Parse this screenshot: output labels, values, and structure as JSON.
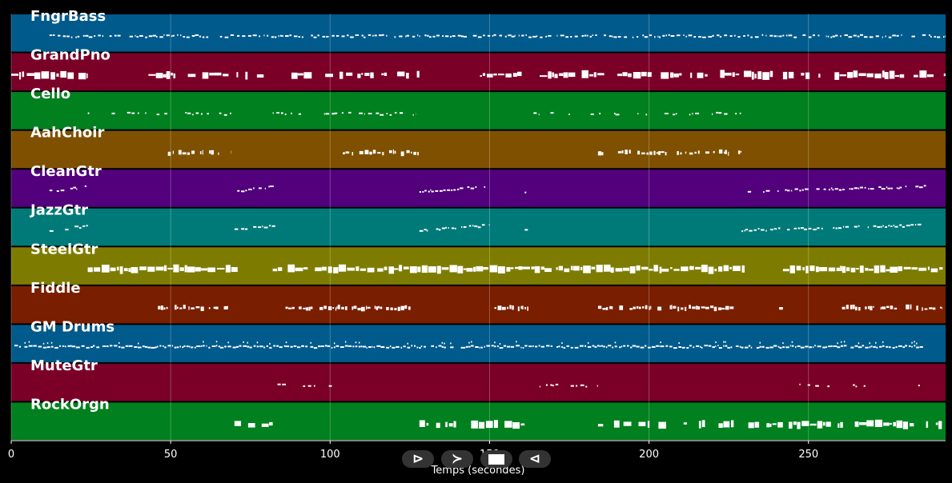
{
  "chart_data": {
    "type": "piano-roll",
    "xlabel": "Temps (secondes)",
    "xlim": [
      0,
      293
    ],
    "xticks": [
      0,
      50,
      100,
      150,
      200,
      250
    ],
    "grid": true,
    "tracks": [
      {
        "name": "FngrBass",
        "color": "#005a8c",
        "segments": [
          [
            12,
            293
          ]
        ],
        "density": 0.9,
        "style": "thin"
      },
      {
        "name": "GrandPno",
        "color": "#7b0028",
        "segments": [
          [
            0,
            24
          ],
          [
            43,
            82
          ],
          [
            86,
            128
          ],
          [
            147,
            162
          ],
          [
            165,
            240
          ],
          [
            242,
            293
          ]
        ],
        "density": 0.7,
        "style": "blocky"
      },
      {
        "name": "Cello",
        "color": "#00801e",
        "segments": [
          [
            24,
            69
          ],
          [
            82,
            127
          ],
          [
            162,
            229
          ]
        ],
        "density": 0.5,
        "style": "thin"
      },
      {
        "name": "AahChoir",
        "color": "#7e5000",
        "segments": [
          [
            46,
            69
          ],
          [
            104,
            128
          ],
          [
            184,
            229
          ]
        ],
        "density": 0.6,
        "style": "medium"
      },
      {
        "name": "CleanGtr",
        "color": "#52007c",
        "segments": [
          [
            12,
            25
          ],
          [
            70,
            83
          ],
          [
            128,
            150
          ],
          [
            161,
            162
          ],
          [
            229,
            287
          ]
        ],
        "density": 0.7,
        "style": "wavy"
      },
      {
        "name": "JazzGtr",
        "color": "#007a78",
        "segments": [
          [
            12,
            25
          ],
          [
            70,
            83
          ],
          [
            128,
            150
          ],
          [
            161,
            162
          ],
          [
            229,
            287
          ]
        ],
        "density": 0.7,
        "style": "wavy"
      },
      {
        "name": "SteelGtr",
        "color": "#7e7c00",
        "segments": [
          [
            24,
            71
          ],
          [
            82,
            230
          ],
          [
            242,
            293
          ]
        ],
        "density": 0.95,
        "style": "blocky"
      },
      {
        "name": "Fiddle",
        "color": "#7a1e00",
        "segments": [
          [
            46,
            68
          ],
          [
            86,
            126
          ],
          [
            150,
            163
          ],
          [
            184,
            228
          ],
          [
            240,
            242
          ],
          [
            258,
            292
          ]
        ],
        "density": 0.7,
        "style": "medium"
      },
      {
        "name": "GM Drums",
        "color": "#005a8c",
        "segments": [
          [
            1,
            286
          ]
        ],
        "density": 0.95,
        "style": "drums"
      },
      {
        "name": "MuteGtr",
        "color": "#7b0028",
        "segments": [
          [
            82,
            104
          ],
          [
            162,
            184
          ],
          [
            243,
            285
          ]
        ],
        "density": 0.4,
        "style": "thin"
      },
      {
        "name": "RockOrgn",
        "color": "#00801e",
        "segments": [
          [
            70,
            82
          ],
          [
            128,
            161
          ],
          [
            184,
            230
          ],
          [
            230,
            293
          ]
        ],
        "density": 0.7,
        "style": "blocky"
      }
    ]
  },
  "playback": {
    "play_forward_icon": "⊳",
    "fast_forward_icon": "≻",
    "stop_icon": "stop",
    "play_backward_icon": "⊲"
  }
}
